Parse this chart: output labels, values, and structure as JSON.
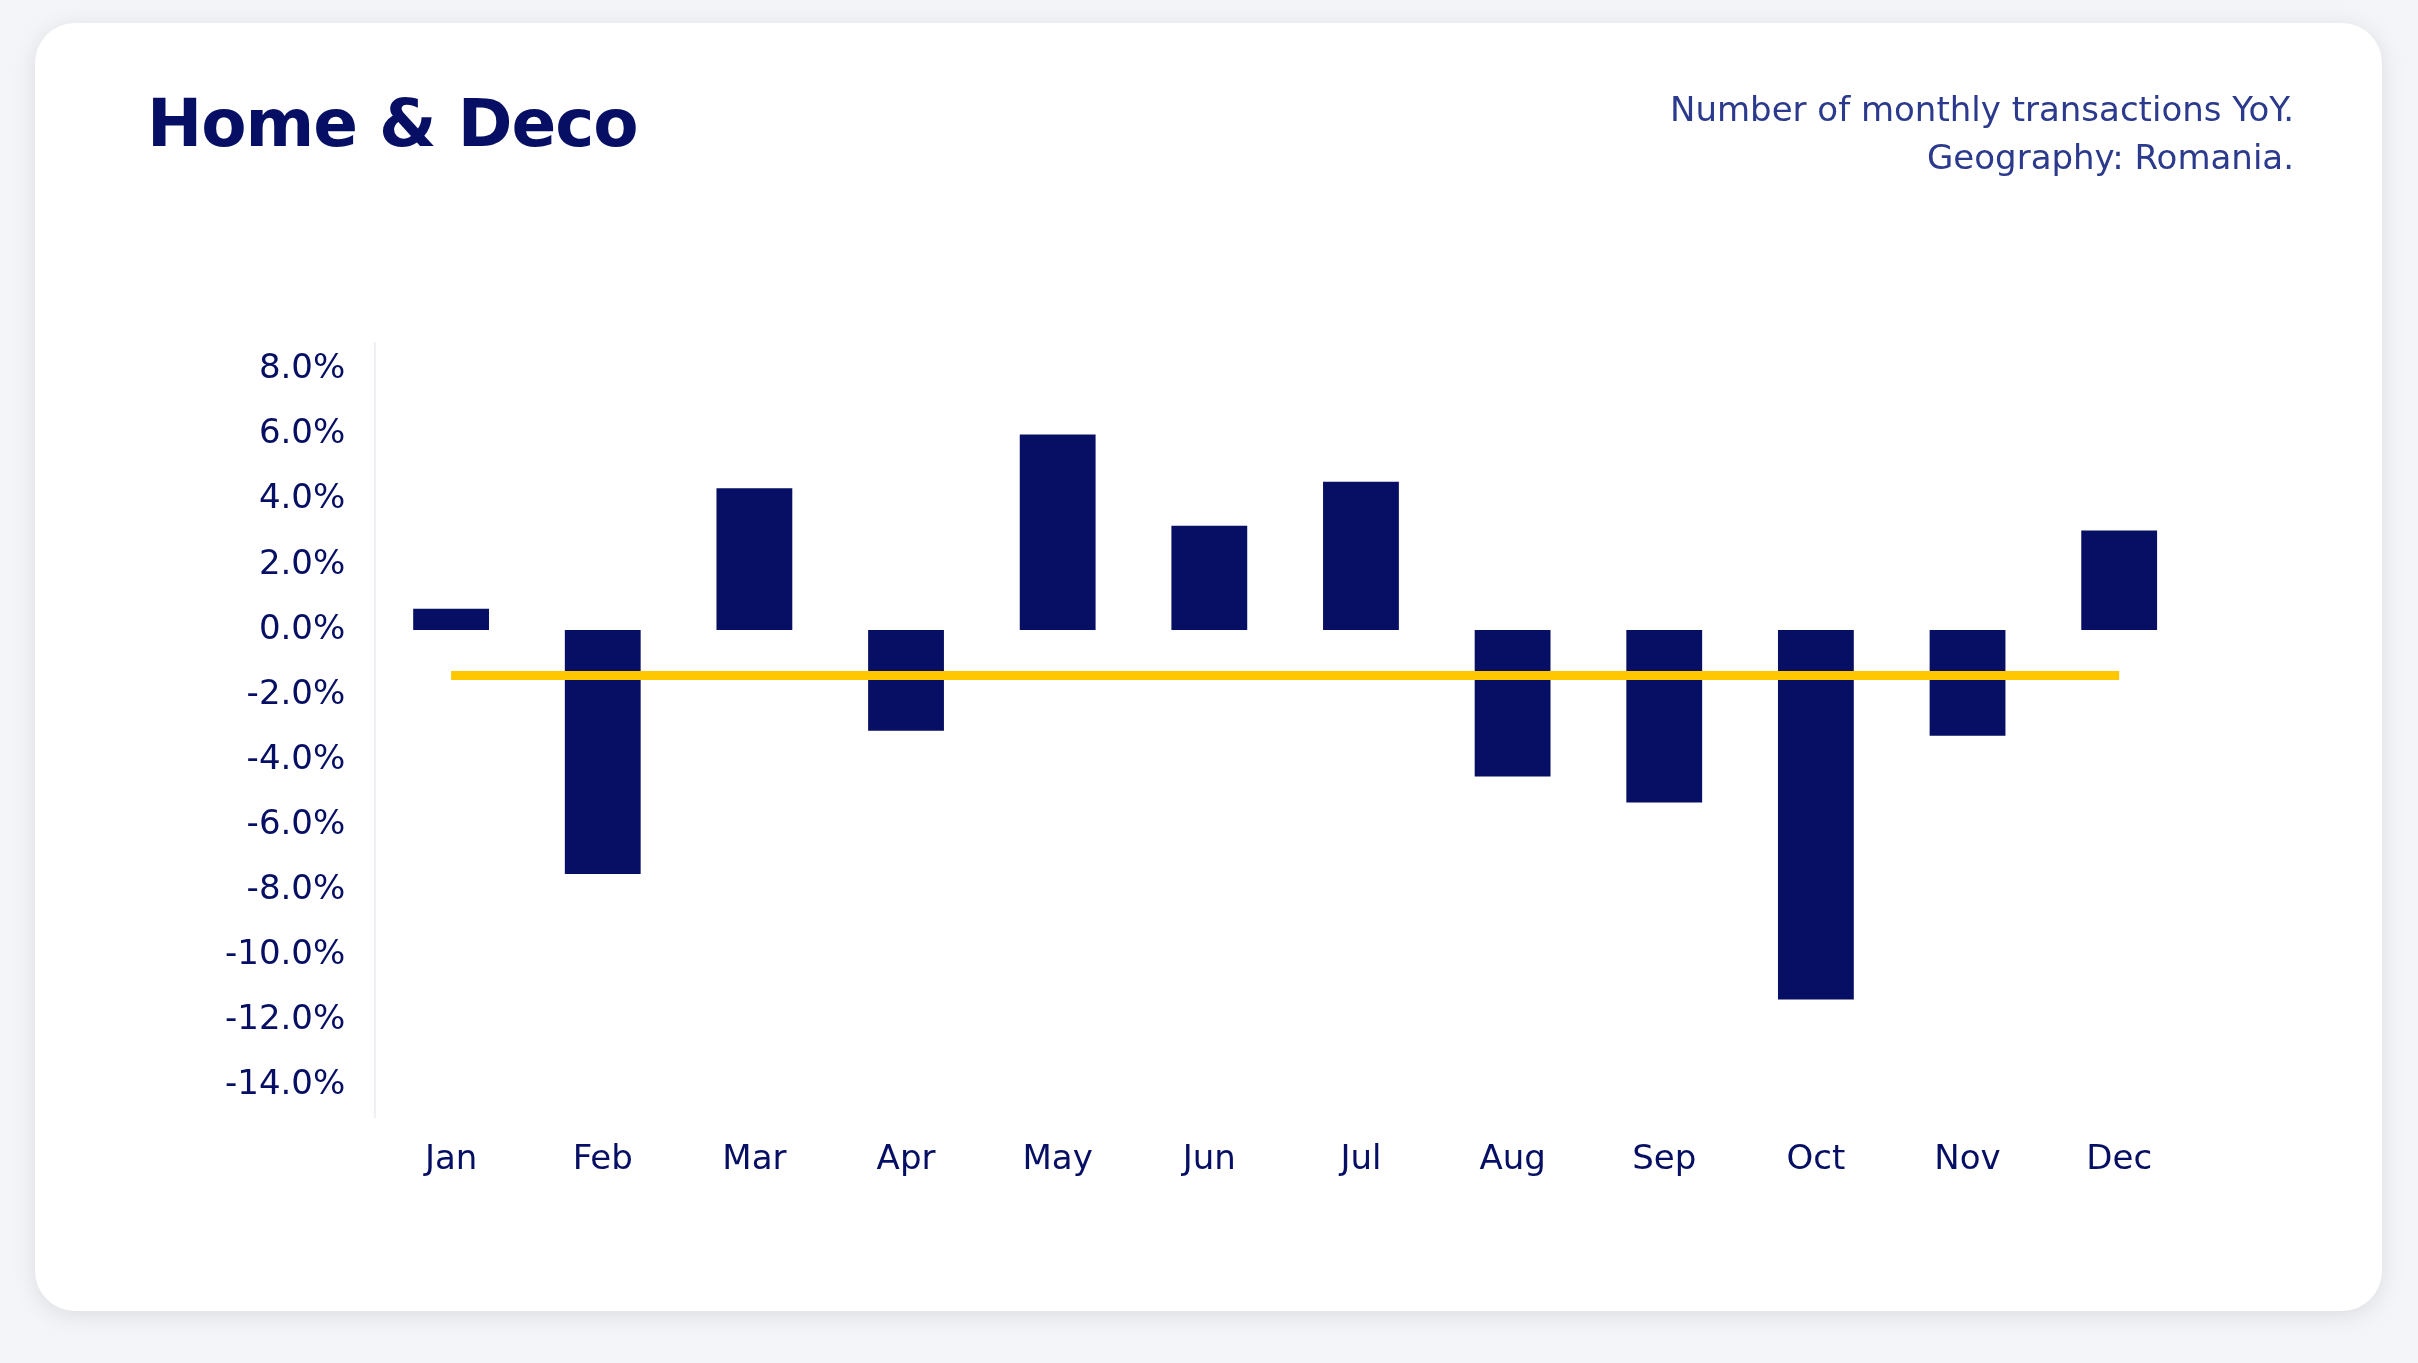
{
  "chart_data": {
    "type": "bar",
    "title": "Home & Deco",
    "subtitle": "Number of monthly transactions YoY.\nGeography: Romania.",
    "categories": [
      "Jan",
      "Feb",
      "Mar",
      "Apr",
      "May",
      "Jun",
      "Jul",
      "Aug",
      "Sep",
      "Oct",
      "Nov",
      "Dec"
    ],
    "series": [
      {
        "color": "#060f63",
        "values": [
          0.65,
          -7.5,
          4.35,
          -3.1,
          6.0,
          3.2,
          4.55,
          -4.5,
          -5.3,
          -11.35,
          -3.25,
          3.05
        ]
      },
      {
        "type": "line",
        "color": "#ffc700",
        "values": [
          -1.4,
          -1.4,
          -1.4,
          -1.4,
          -1.4,
          -1.4,
          -1.4,
          -1.4,
          -1.4,
          -1.4,
          -1.4,
          -1.4
        ]
      }
    ],
    "ylim": [
      -15,
      8.8
    ],
    "yticks": [
      {
        "value": -14,
        "label": "-14.0%"
      },
      {
        "value": -12,
        "label": "-12.0%"
      },
      {
        "value": -10,
        "label": "-10.0%"
      },
      {
        "value": -8,
        "label": "-8.0%"
      },
      {
        "value": -6,
        "label": "-6.0%"
      },
      {
        "value": -4,
        "label": "-4.0%"
      },
      {
        "value": -2,
        "label": "-2.0%"
      },
      {
        "value": 0,
        "label": "0.0%"
      },
      {
        "value": 2,
        "label": "2.0%"
      },
      {
        "value": 4,
        "label": "4.0%"
      },
      {
        "value": 6,
        "label": "6.0%"
      },
      {
        "value": 8,
        "label": "8.0%"
      }
    ],
    "grid": false,
    "legend": false,
    "marker": "none"
  }
}
